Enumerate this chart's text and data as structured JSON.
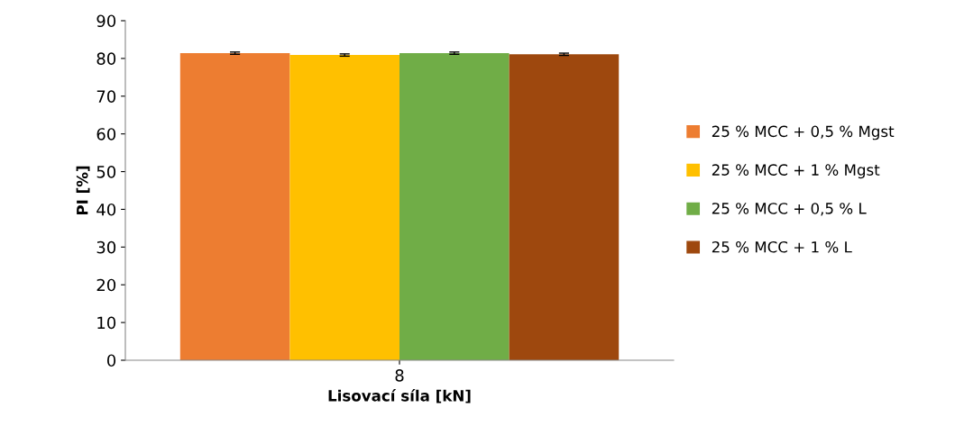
{
  "chart_data": {
    "type": "bar",
    "xlabel": "Lisovací síla [kN]",
    "ylabel": "PI [%]",
    "categories": [
      "8"
    ],
    "series": [
      {
        "name": "25 % MCC + 0,5 % Mgst",
        "color": "#ed7d31",
        "values": [
          81.4
        ],
        "errors": [
          0.3
        ]
      },
      {
        "name": "25 % MCC + 1 % Mgst",
        "color": "#ffc000",
        "values": [
          80.9
        ],
        "errors": [
          0.3
        ]
      },
      {
        "name": "25 % MCC + 0,5 % L",
        "color": "#70ad47",
        "values": [
          81.4
        ],
        "errors": [
          0.3
        ]
      },
      {
        "name": "25 % MCC + 1 % L",
        "color": "#9e480e",
        "values": [
          81.1
        ],
        "errors": [
          0.3
        ]
      }
    ],
    "ylim": [
      0,
      90
    ],
    "yticks": [
      0,
      10,
      20,
      30,
      40,
      50,
      60,
      70,
      80,
      90
    ],
    "grid": false,
    "legend": "right"
  }
}
